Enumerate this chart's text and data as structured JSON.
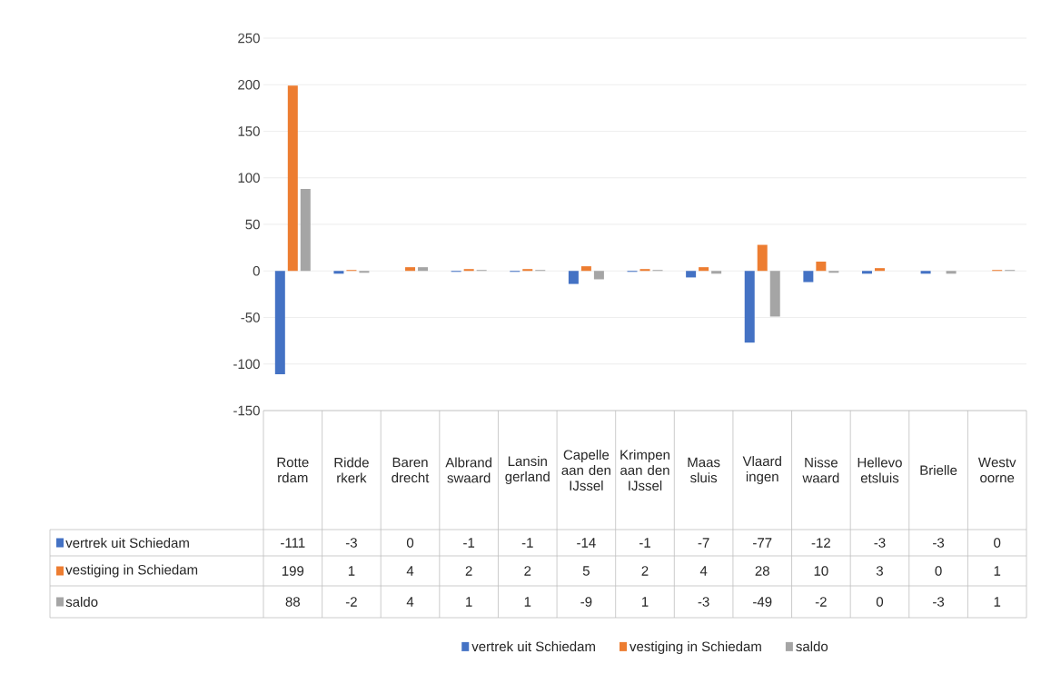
{
  "chart_data": {
    "type": "bar",
    "categories": [
      "Rotterdam",
      "Ridderkerk",
      "Barendrecht",
      "Albrandswaard",
      "Lansingerland",
      "Capelle aan den IJssel",
      "Krimpen aan den IJssel",
      "Maassluis",
      "Vlaardingen",
      "Nissewaard",
      "Hellevoetsluis",
      "Brielle",
      "Westvoorne"
    ],
    "series": [
      {
        "name": "vertrek uit Schiedam",
        "color": "#4472c4",
        "values": [
          -111,
          -3,
          0,
          -1,
          -1,
          -14,
          -1,
          -7,
          -77,
          -12,
          -3,
          -3,
          0
        ]
      },
      {
        "name": "vestiging in Schiedam",
        "color": "#ed7d31",
        "values": [
          199,
          1,
          4,
          2,
          2,
          5,
          2,
          4,
          28,
          10,
          3,
          0,
          1
        ]
      },
      {
        "name": "saldo",
        "color": "#a5a5a5",
        "values": [
          88,
          -2,
          4,
          1,
          1,
          -9,
          1,
          -3,
          -49,
          -2,
          0,
          -3,
          1
        ]
      }
    ],
    "ylim": [
      -150,
      250
    ],
    "yticks": [
      -150,
      -100,
      -50,
      0,
      50,
      100,
      150,
      200,
      250
    ],
    "grid": "y",
    "legend": "bottom",
    "data_labels": true
  }
}
